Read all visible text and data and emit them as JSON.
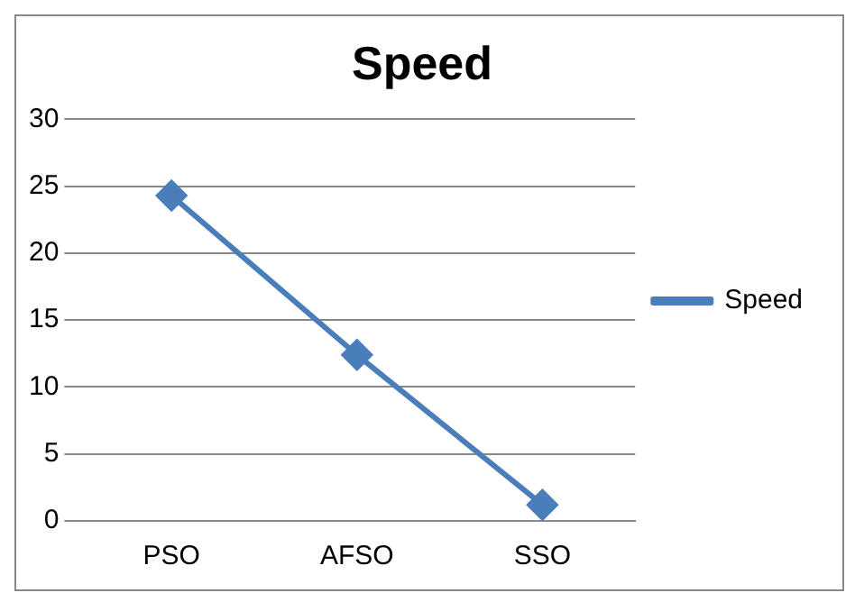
{
  "chart_data": {
    "type": "line",
    "title": "Speed",
    "categories": [
      "PSO",
      "AFSO",
      "SSO"
    ],
    "series": [
      {
        "name": "Speed",
        "color": "#4a7ebb",
        "values": [
          24.3,
          12.4,
          1.2
        ]
      }
    ],
    "ylim": [
      0,
      30
    ],
    "yticks": [
      0,
      5,
      10,
      15,
      20,
      25,
      30
    ],
    "grid": "y",
    "legend": "right",
    "marker": "diamond"
  }
}
